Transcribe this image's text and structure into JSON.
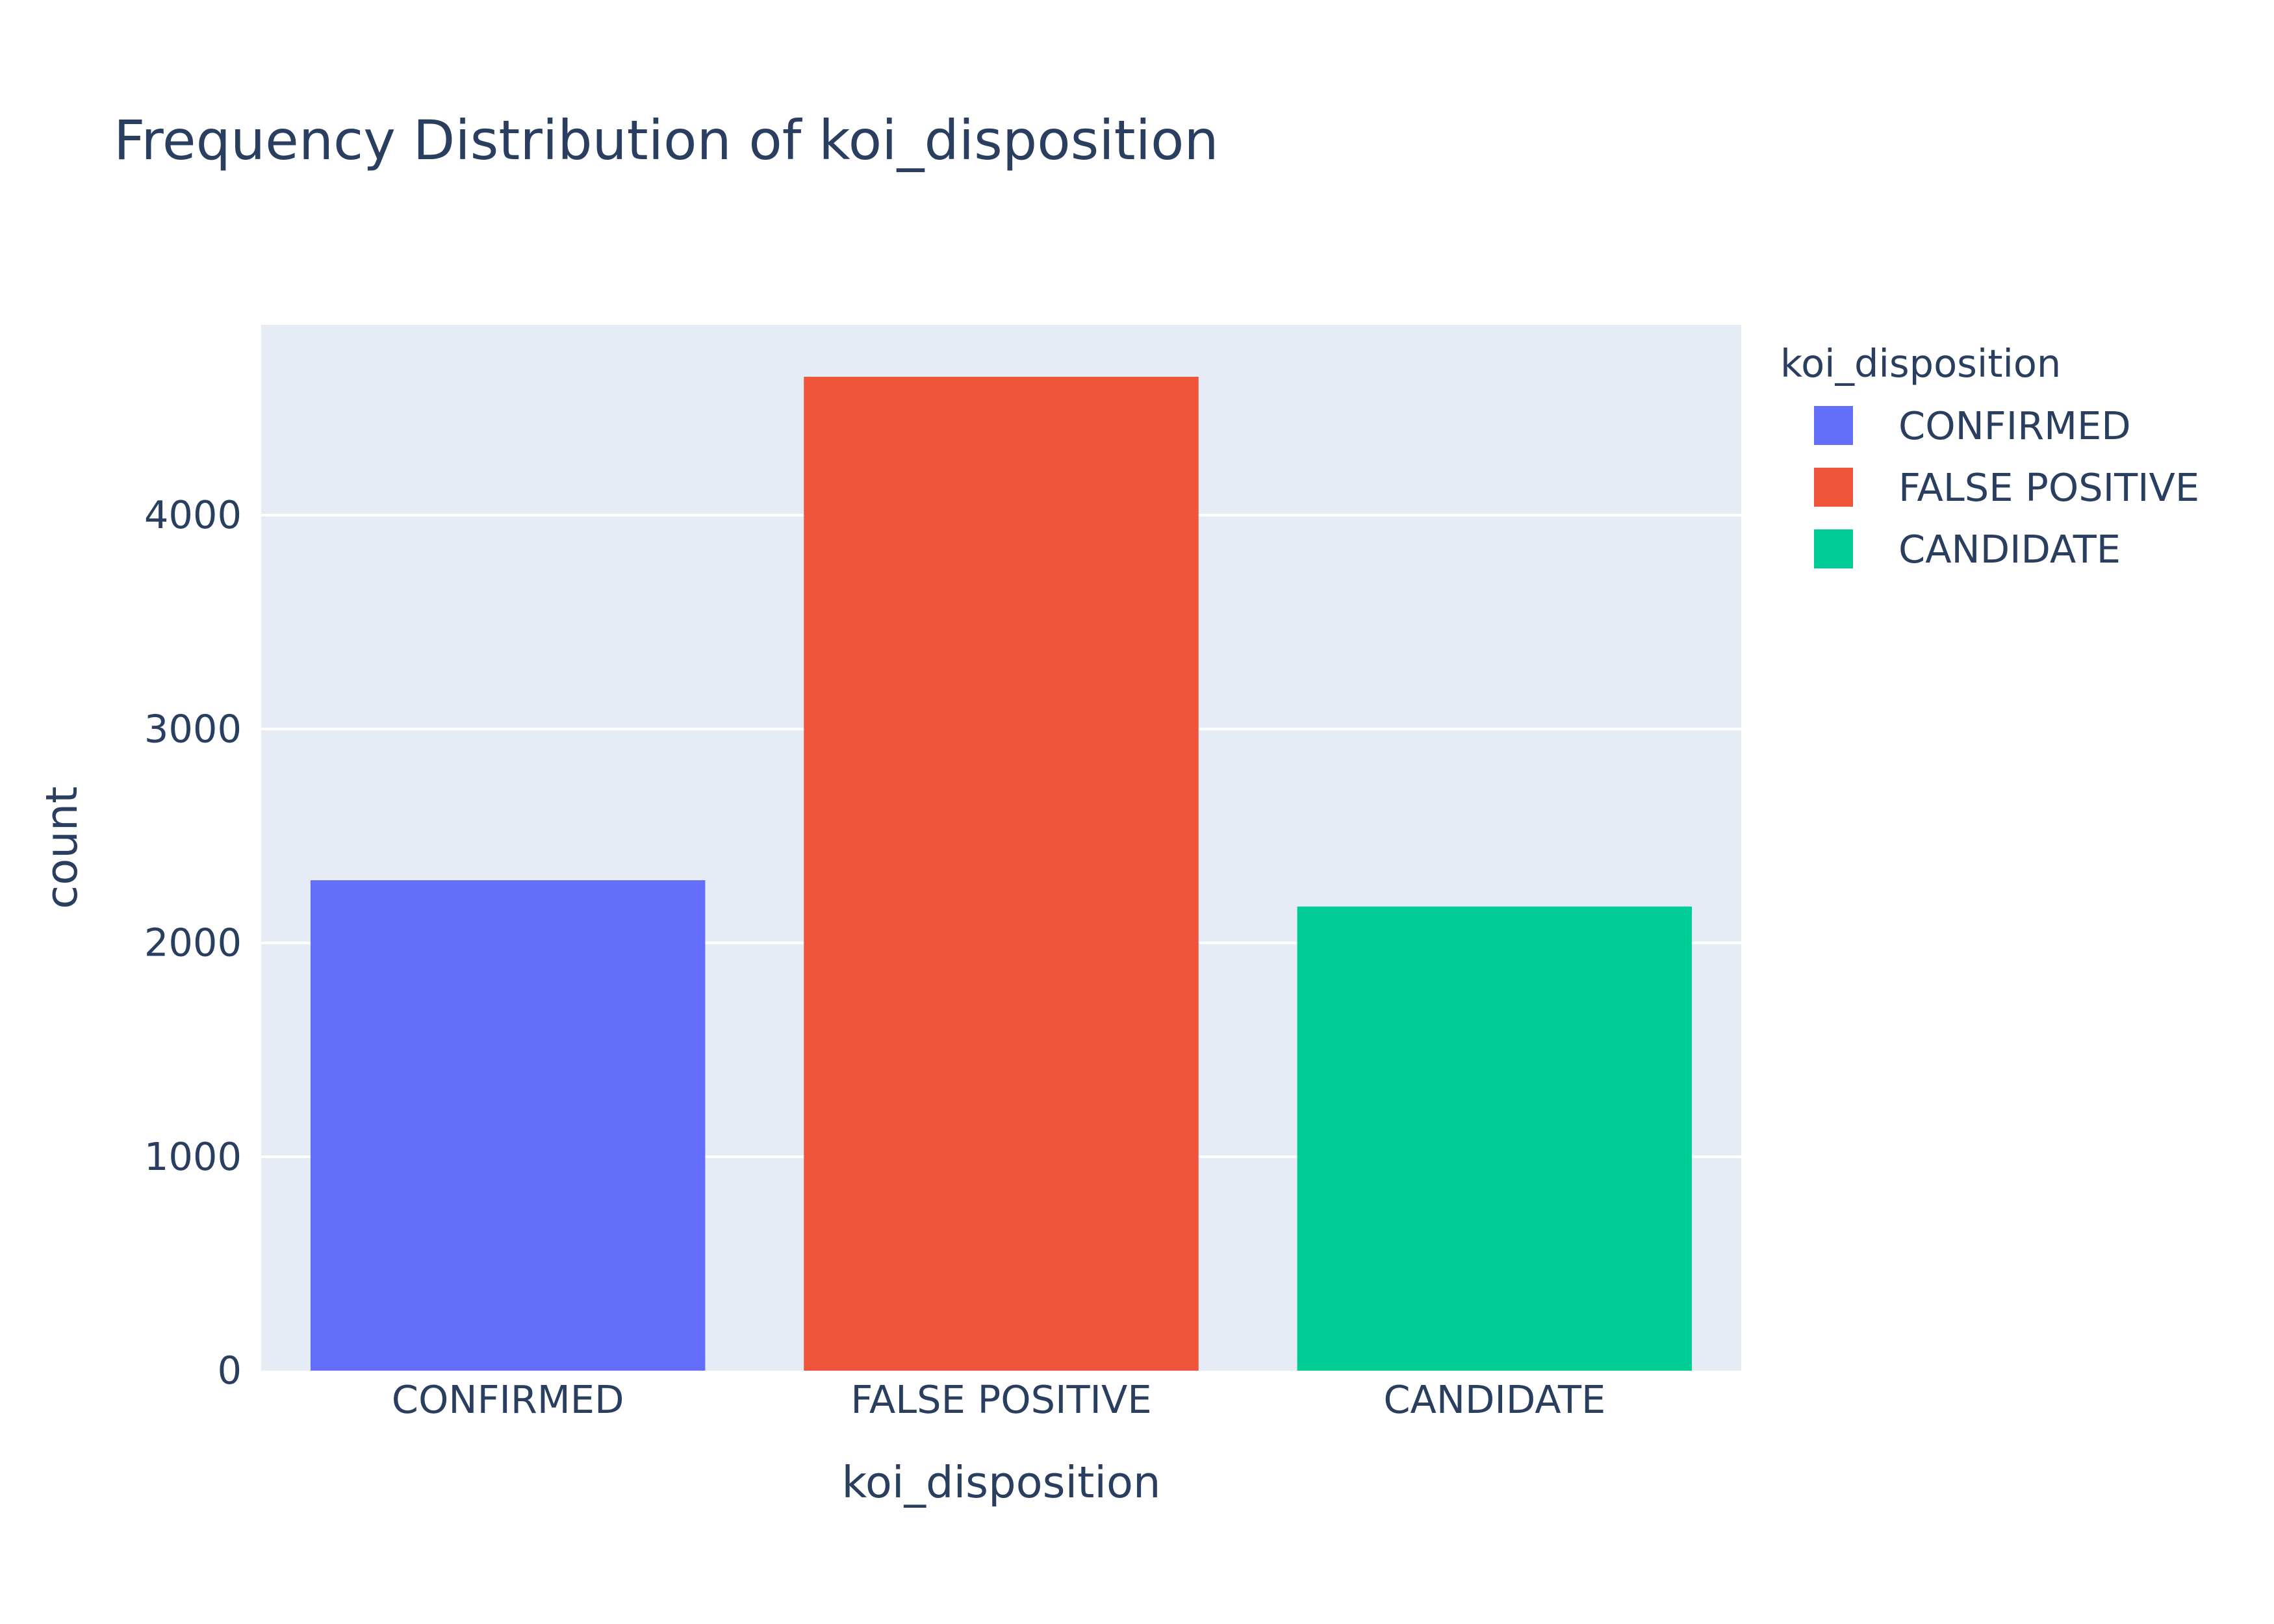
{
  "chart_data": {
    "type": "bar",
    "title": "Frequency Distribution of koi_disposition",
    "xlabel": "koi_disposition",
    "ylabel": "count",
    "categories": [
      "CONFIRMED",
      "FALSE POSITIVE",
      "CANDIDATE"
    ],
    "values": [
      2293,
      4647,
      2170
    ],
    "colors": [
      "#636efa",
      "#ef553b",
      "#00cc96"
    ],
    "ylim": [
      0,
      4890
    ],
    "yticks": [
      0,
      1000,
      2000,
      3000,
      4000
    ],
    "ytick_labels": [
      "0",
      "1000",
      "2000",
      "3000",
      "4000"
    ],
    "grid": true,
    "plot_background": "#e5ecf6",
    "legend": {
      "title": "koi_disposition",
      "placement": "right",
      "items": [
        "CONFIRMED",
        "FALSE POSITIVE",
        "CANDIDATE"
      ]
    }
  }
}
